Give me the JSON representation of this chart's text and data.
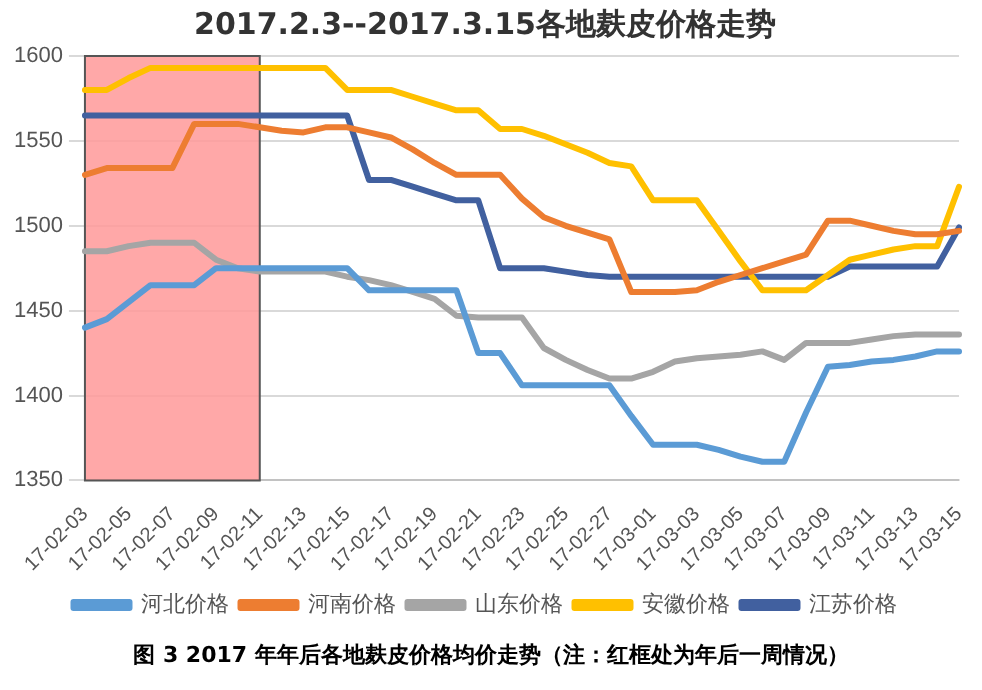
{
  "chart_data": {
    "type": "line",
    "title": "2017.2.3--2017.3.15各地麸皮价格走势",
    "categories": [
      "17-02-03",
      null,
      "17-02-05",
      null,
      "17-02-07",
      null,
      "17-02-09",
      null,
      "17-02-11",
      null,
      "17-02-13",
      null,
      "17-02-15",
      null,
      "17-02-17",
      null,
      "17-02-19",
      null,
      "17-02-21",
      null,
      "17-02-23",
      null,
      "17-02-25",
      null,
      "17-02-27",
      null,
      "17-03-01",
      null,
      "17-03-03",
      null,
      "17-03-05",
      null,
      "17-03-07",
      null,
      "17-03-09",
      null,
      "17-03-11",
      null,
      "17-03-13",
      null,
      "17-03-15"
    ],
    "series": [
      {
        "name": "河北价格",
        "color": "#5b9bd5",
        "values": [
          1440,
          1445,
          1455,
          1465,
          1465,
          1465,
          1475,
          1475,
          1475,
          1475,
          1475,
          1475,
          1475,
          1462,
          1462,
          1462,
          1462,
          1462,
          1425,
          1425,
          1406,
          1406,
          1406,
          1406,
          1406,
          1388,
          1371,
          1371,
          1371,
          1368,
          1364,
          1361,
          1361,
          1390,
          1417,
          1418,
          1420,
          1421,
          1423,
          1426,
          1426
        ]
      },
      {
        "name": "河南价格",
        "color": "#ed7d31",
        "values": [
          1530,
          1534,
          1534,
          1534,
          1534,
          1560,
          1560,
          1560,
          1558,
          1556,
          1555,
          1558,
          1558,
          1555,
          1552,
          1545,
          1537,
          1530,
          1530,
          1530,
          1516,
          1505,
          1500,
          1496,
          1492,
          1461,
          1461,
          1461,
          1462,
          1467,
          1471,
          1475,
          1479,
          1483,
          1503,
          1503,
          1500,
          1497,
          1495,
          1495,
          1497
        ]
      },
      {
        "name": "山东价格",
        "color": "#a5a5a5",
        "values": [
          1485,
          1485,
          1488,
          1490,
          1490,
          1490,
          1480,
          1475,
          1473,
          1473,
          1473,
          1473,
          1470,
          1468,
          1465,
          1461,
          1457,
          1447,
          1446,
          1446,
          1446,
          1428,
          1421,
          1415,
          1410,
          1410,
          1414,
          1420,
          1422,
          1423,
          1424,
          1426,
          1421,
          1431,
          1431,
          1431,
          1433,
          1435,
          1436,
          1436,
          1436
        ]
      },
      {
        "name": "安徽价格",
        "color": "#ffc000",
        "values": [
          1580,
          1580,
          1587,
          1593,
          1593,
          1593,
          1593,
          1593,
          1593,
          1593,
          1593,
          1593,
          1580,
          1580,
          1580,
          1576,
          1572,
          1568,
          1568,
          1557,
          1557,
          1553,
          1548,
          1543,
          1537,
          1535,
          1515,
          1515,
          1515,
          1497,
          1479,
          1462,
          1462,
          1462,
          1471,
          1480,
          1483,
          1486,
          1488,
          1488,
          1523
        ]
      },
      {
        "name": "江苏价格",
        "color": "#41609f",
        "values": [
          1565,
          1565,
          1565,
          1565,
          1565,
          1565,
          1565,
          1565,
          1565,
          1565,
          1565,
          1565,
          1565,
          1527,
          1527,
          1523,
          1519,
          1515,
          1515,
          1475,
          1475,
          1475,
          1473,
          1471,
          1470,
          1470,
          1470,
          1470,
          1470,
          1470,
          1470,
          1470,
          1470,
          1470,
          1470,
          1476,
          1476,
          1476,
          1476,
          1476,
          1499
        ]
      }
    ],
    "ylim": [
      1350,
      1600
    ],
    "yticks": [
      1350,
      1400,
      1450,
      1500,
      1550,
      1600
    ],
    "grid": "y",
    "legend": "bottom",
    "marker": "none",
    "line_style": "solid",
    "bands": [
      {
        "axis": "x",
        "from": "17-02-03",
        "to": "17-02-11",
        "color": "#ff9999"
      }
    ],
    "annotations": [
      "图 3 2017 年年后各地麸皮价格均价走势（注：红框处为年后一周情况）"
    ]
  }
}
